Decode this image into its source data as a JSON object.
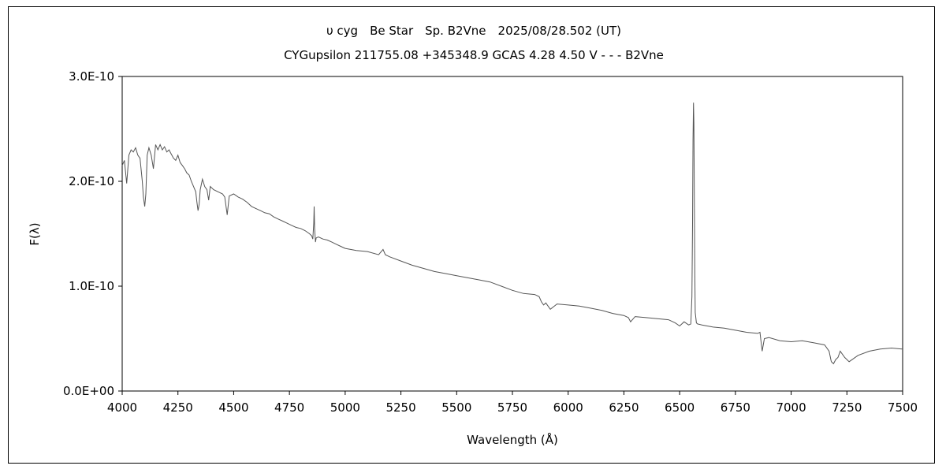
{
  "chart_data": {
    "type": "line",
    "title": "υ cyg　Be Star　Sp. B2Vne　2025/08/28.502 (UT)",
    "subtitle": "CYGupsilon 211755.08 +345348.9 GCAS 4.28 4.50 V - - - B2Vne",
    "xlabel": "Wavelength (Å)",
    "ylabel": "F(λ)",
    "xlim": [
      4000,
      7500
    ],
    "ylim": [
      0,
      3e-10
    ],
    "x_ticks": [
      4000,
      4250,
      4500,
      4750,
      5000,
      5250,
      5500,
      5750,
      6000,
      6250,
      6500,
      6750,
      7000,
      7250,
      7500
    ],
    "x_tick_labels": [
      "4000",
      "4250",
      "4500",
      "4750",
      "5000",
      "5250",
      "5500",
      "5750",
      "6000",
      "6250",
      "6500",
      "6750",
      "7000",
      "7250",
      "7500"
    ],
    "y_ticks": [
      0,
      1e-10,
      2e-10,
      3e-10
    ],
    "y_tick_labels": [
      "0.0E+00",
      "1.0E-10",
      "2.0E-10",
      "3.0E-10"
    ],
    "grid": false,
    "legend": "none",
    "line_color": "#555555",
    "series": [
      {
        "x": [
          4000,
          4010,
          4020,
          4030,
          4040,
          4050,
          4060,
          4070,
          4080,
          4090,
          4095,
          4101,
          4106,
          4112,
          4120,
          4130,
          4140,
          4150,
          4160,
          4170,
          4180,
          4190,
          4200,
          4210,
          4220,
          4230,
          4240,
          4250,
          4260,
          4270,
          4280,
          4290,
          4300,
          4310,
          4320,
          4330,
          4335,
          4340,
          4345,
          4350,
          4360,
          4370,
          4380,
          4388,
          4395,
          4410,
          4430,
          4450,
          4460,
          4471,
          4480,
          4500,
          4520,
          4540,
          4560,
          4580,
          4600,
          4620,
          4640,
          4660,
          4680,
          4700,
          4720,
          4740,
          4760,
          4780,
          4800,
          4820,
          4840,
          4850,
          4855,
          4859,
          4861,
          4863,
          4867,
          4870,
          4880,
          4900,
          4920,
          4940,
          4960,
          4980,
          5000,
          5050,
          5100,
          5150,
          5170,
          5180,
          5200,
          5250,
          5300,
          5350,
          5400,
          5450,
          5500,
          5550,
          5600,
          5650,
          5700,
          5750,
          5800,
          5850,
          5870,
          5880,
          5890,
          5900,
          5920,
          5950,
          6000,
          6050,
          6100,
          6150,
          6200,
          6250,
          6270,
          6280,
          6300,
          6350,
          6400,
          6450,
          6480,
          6500,
          6520,
          6540,
          6550,
          6555,
          6558,
          6560,
          6562,
          6564,
          6566,
          6568,
          6570,
          6575,
          6580,
          6600,
          6650,
          6700,
          6750,
          6800,
          6850,
          6860,
          6870,
          6880,
          6900,
          6950,
          7000,
          7050,
          7100,
          7150,
          7170,
          7180,
          7190,
          7200,
          7210,
          7220,
          7240,
          7260,
          7280,
          7300,
          7350,
          7400,
          7450,
          7500
        ],
        "y": [
          2.15e-10,
          2.2e-10,
          1.98e-10,
          2.25e-10,
          2.3e-10,
          2.28e-10,
          2.32e-10,
          2.25e-10,
          2.22e-10,
          2e-10,
          1.85e-10,
          1.76e-10,
          1.88e-10,
          2.25e-10,
          2.32e-10,
          2.25e-10,
          2.12e-10,
          2.35e-10,
          2.3e-10,
          2.35e-10,
          2.3e-10,
          2.33e-10,
          2.28e-10,
          2.3e-10,
          2.26e-10,
          2.22e-10,
          2.2e-10,
          2.25e-10,
          2.18e-10,
          2.15e-10,
          2.12e-10,
          2.08e-10,
          2.06e-10,
          2e-10,
          1.95e-10,
          1.9e-10,
          1.8e-10,
          1.72e-10,
          1.78e-10,
          1.92e-10,
          2.02e-10,
          1.95e-10,
          1.92e-10,
          1.82e-10,
          1.95e-10,
          1.92e-10,
          1.9e-10,
          1.88e-10,
          1.85e-10,
          1.68e-10,
          1.86e-10,
          1.88e-10,
          1.85e-10,
          1.83e-10,
          1.8e-10,
          1.76e-10,
          1.74e-10,
          1.72e-10,
          1.7e-10,
          1.69e-10,
          1.66e-10,
          1.64e-10,
          1.62e-10,
          1.6e-10,
          1.58e-10,
          1.56e-10,
          1.55e-10,
          1.53e-10,
          1.5e-10,
          1.48e-10,
          1.45e-10,
          1.6e-10,
          1.76e-10,
          1.55e-10,
          1.42e-10,
          1.46e-10,
          1.47e-10,
          1.45e-10,
          1.44e-10,
          1.42e-10,
          1.4e-10,
          1.38e-10,
          1.36e-10,
          1.34e-10,
          1.33e-10,
          1.3e-10,
          1.35e-10,
          1.3e-10,
          1.28e-10,
          1.24e-10,
          1.2e-10,
          1.17e-10,
          1.14e-10,
          1.12e-10,
          1.1e-10,
          1.08e-10,
          1.06e-10,
          1.04e-10,
          1e-10,
          9.6e-11,
          9.3e-11,
          9.2e-11,
          9e-11,
          8.5e-11,
          8.2e-11,
          8.4e-11,
          7.8e-11,
          8.3e-11,
          8.2e-11,
          8.1e-11,
          7.9e-11,
          7.7e-11,
          7.4e-11,
          7.2e-11,
          7e-11,
          6.6e-11,
          7.1e-11,
          7e-11,
          6.9e-11,
          6.8e-11,
          6.5e-11,
          6.2e-11,
          6.6e-11,
          6.3e-11,
          6.4e-11,
          9e-11,
          1.6e-10,
          2.4e-10,
          2.75e-10,
          2.55e-10,
          1.8e-10,
          1.1e-10,
          7.5e-11,
          6.5e-11,
          6.4e-11,
          6.3e-11,
          6.1e-11,
          6e-11,
          5.8e-11,
          5.6e-11,
          5.5e-11,
          5.6e-11,
          3.8e-11,
          5e-11,
          5.1e-11,
          4.8e-11,
          4.7e-11,
          4.8e-11,
          4.6e-11,
          4.4e-11,
          3.8e-11,
          2.8e-11,
          2.6e-11,
          3e-11,
          3.2e-11,
          3.8e-11,
          3.2e-11,
          2.8e-11,
          3.1e-11,
          3.4e-11,
          3.8e-11,
          4e-11,
          4.1e-11,
          4e-11
        ]
      }
    ]
  }
}
